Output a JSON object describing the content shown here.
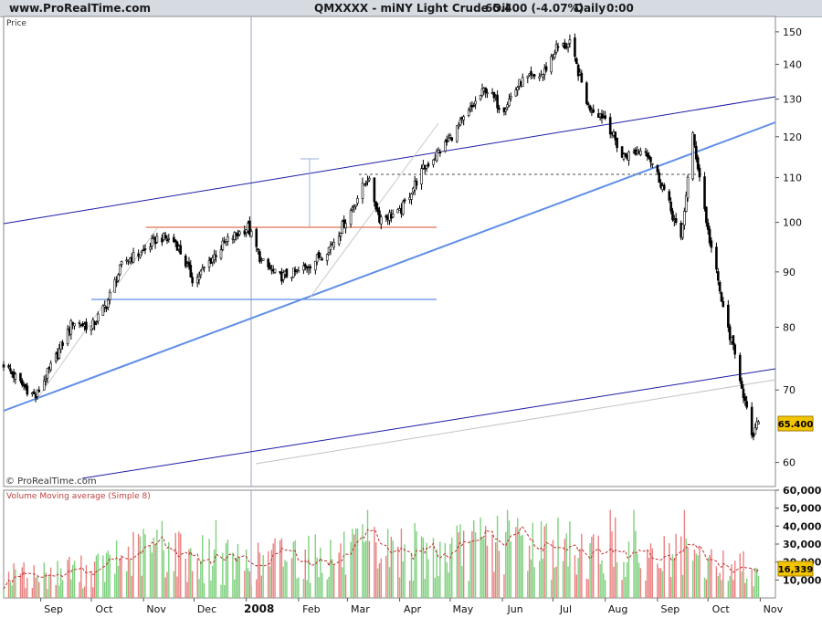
{
  "header": {
    "site": "www.ProRealTime.com",
    "symbol": "QMXXXX - miNY Light Crude Oil",
    "price_change": "65.400 (-4.07%)",
    "frequency": "Daily",
    "time": "0:00"
  },
  "price_panel": {
    "label": "Price",
    "watermark": "© ProRealTime.com",
    "last_price_badge": "65.400"
  },
  "volume_panel": {
    "label": "Volume Moving average (Simple 8)",
    "last_value_badge": "16,339"
  },
  "colors": {
    "header_bg": "#d6dbe2",
    "price_badge": "#f2c400",
    "trend_light_blue": "#5f8ee8",
    "channel_dark_blue": "#1c1ca8",
    "horizontal_red": "#e07050",
    "volume_up": "#7fd07f",
    "volume_down": "#e88080",
    "volume_ma": "#c03030"
  },
  "chart_data": [
    {
      "type": "candlestick",
      "title": "QMXXXX - miNY Light Crude Oil",
      "ylabel": "Price",
      "y_scale": "log",
      "ylim": [
        57,
        155
      ],
      "y_ticks": [
        60,
        70,
        80,
        90,
        100,
        110,
        120,
        130,
        140,
        150
      ],
      "x_ticks": [
        "Sep",
        "Oct",
        "Nov",
        "Dec",
        "2008",
        "Feb",
        "Mar",
        "Apr",
        "May",
        "Jun",
        "Jul",
        "Aug",
        "Sep",
        "Oct",
        "Nov"
      ],
      "x_range": [
        "2007-08-10",
        "2008-11-10"
      ],
      "last_value": 65.4,
      "grid": false,
      "close_path": [
        [
          "2007-08-10",
          74
        ],
        [
          "2007-08-20",
          71
        ],
        [
          "2007-08-29",
          69
        ],
        [
          "2007-09-10",
          75
        ],
        [
          "2007-09-20",
          81
        ],
        [
          "2007-10-01",
          80
        ],
        [
          "2007-10-10",
          84
        ],
        [
          "2007-10-20",
          92
        ],
        [
          "2007-11-01",
          94
        ],
        [
          "2007-11-10",
          97
        ],
        [
          "2007-11-20",
          96
        ],
        [
          "2007-12-01",
          88
        ],
        [
          "2007-12-10",
          92
        ],
        [
          "2007-12-20",
          96
        ],
        [
          "2008-01-02",
          99
        ],
        [
          "2008-01-10",
          92
        ],
        [
          "2008-01-20",
          89
        ],
        [
          "2008-02-01",
          90
        ],
        [
          "2008-02-10",
          92
        ],
        [
          "2008-02-20",
          95
        ],
        [
          "2008-03-01",
          101
        ],
        [
          "2008-03-13",
          110
        ],
        [
          "2008-03-20",
          101
        ],
        [
          "2008-04-01",
          102
        ],
        [
          "2008-04-15",
          112
        ],
        [
          "2008-04-28",
          118
        ],
        [
          "2008-05-10",
          125
        ],
        [
          "2008-05-22",
          133
        ],
        [
          "2008-06-01",
          127
        ],
        [
          "2008-06-12",
          135
        ],
        [
          "2008-06-25",
          137
        ],
        [
          "2008-07-03",
          145
        ],
        [
          "2008-07-11",
          146
        ],
        [
          "2008-07-22",
          128
        ],
        [
          "2008-08-01",
          125
        ],
        [
          "2008-08-11",
          115
        ],
        [
          "2008-08-25",
          117
        ],
        [
          "2008-09-05",
          107
        ],
        [
          "2008-09-15",
          96
        ],
        [
          "2008-09-22",
          120
        ],
        [
          "2008-10-01",
          98
        ],
        [
          "2008-10-10",
          83
        ],
        [
          "2008-10-20",
          72
        ],
        [
          "2008-10-27",
          63
        ],
        [
          "2008-10-31",
          65.4
        ]
      ],
      "price_range": {
        "low": 61.5,
        "high": 147
      }
    },
    {
      "type": "bar",
      "title": "Volume Moving average (Simple 8)",
      "ylim": [
        0,
        60000
      ],
      "y_ticks": [
        10000,
        20000,
        30000,
        40000,
        50000,
        60000
      ],
      "y_tick_labels": [
        "10,000",
        "20,000",
        "30,000",
        "40,000",
        "50,000",
        "60,000"
      ],
      "series": [
        {
          "name": "Volume Moving average (Simple 8)",
          "type": "line",
          "last_value": 16339
        }
      ],
      "volume_path": [
        [
          "2007-08-10",
          12000
        ],
        [
          "2007-09-01",
          13000
        ],
        [
          "2007-10-01",
          15000
        ],
        [
          "2007-11-05",
          27000
        ],
        [
          "2007-11-20",
          25000
        ],
        [
          "2007-12-15",
          20000
        ],
        [
          "2008-01-10",
          19000
        ],
        [
          "2008-01-25",
          25000
        ],
        [
          "2008-02-15",
          22000
        ],
        [
          "2008-03-10",
          25000
        ],
        [
          "2008-04-01",
          26000
        ],
        [
          "2008-04-28",
          24000
        ],
        [
          "2008-05-20",
          29000
        ],
        [
          "2008-06-05",
          33000
        ],
        [
          "2008-06-20",
          30000
        ],
        [
          "2008-07-15",
          26000
        ],
        [
          "2008-08-10",
          23000
        ],
        [
          "2008-09-10",
          22000
        ],
        [
          "2008-10-10",
          17000
        ],
        [
          "2008-11-01",
          16339
        ]
      ]
    }
  ]
}
